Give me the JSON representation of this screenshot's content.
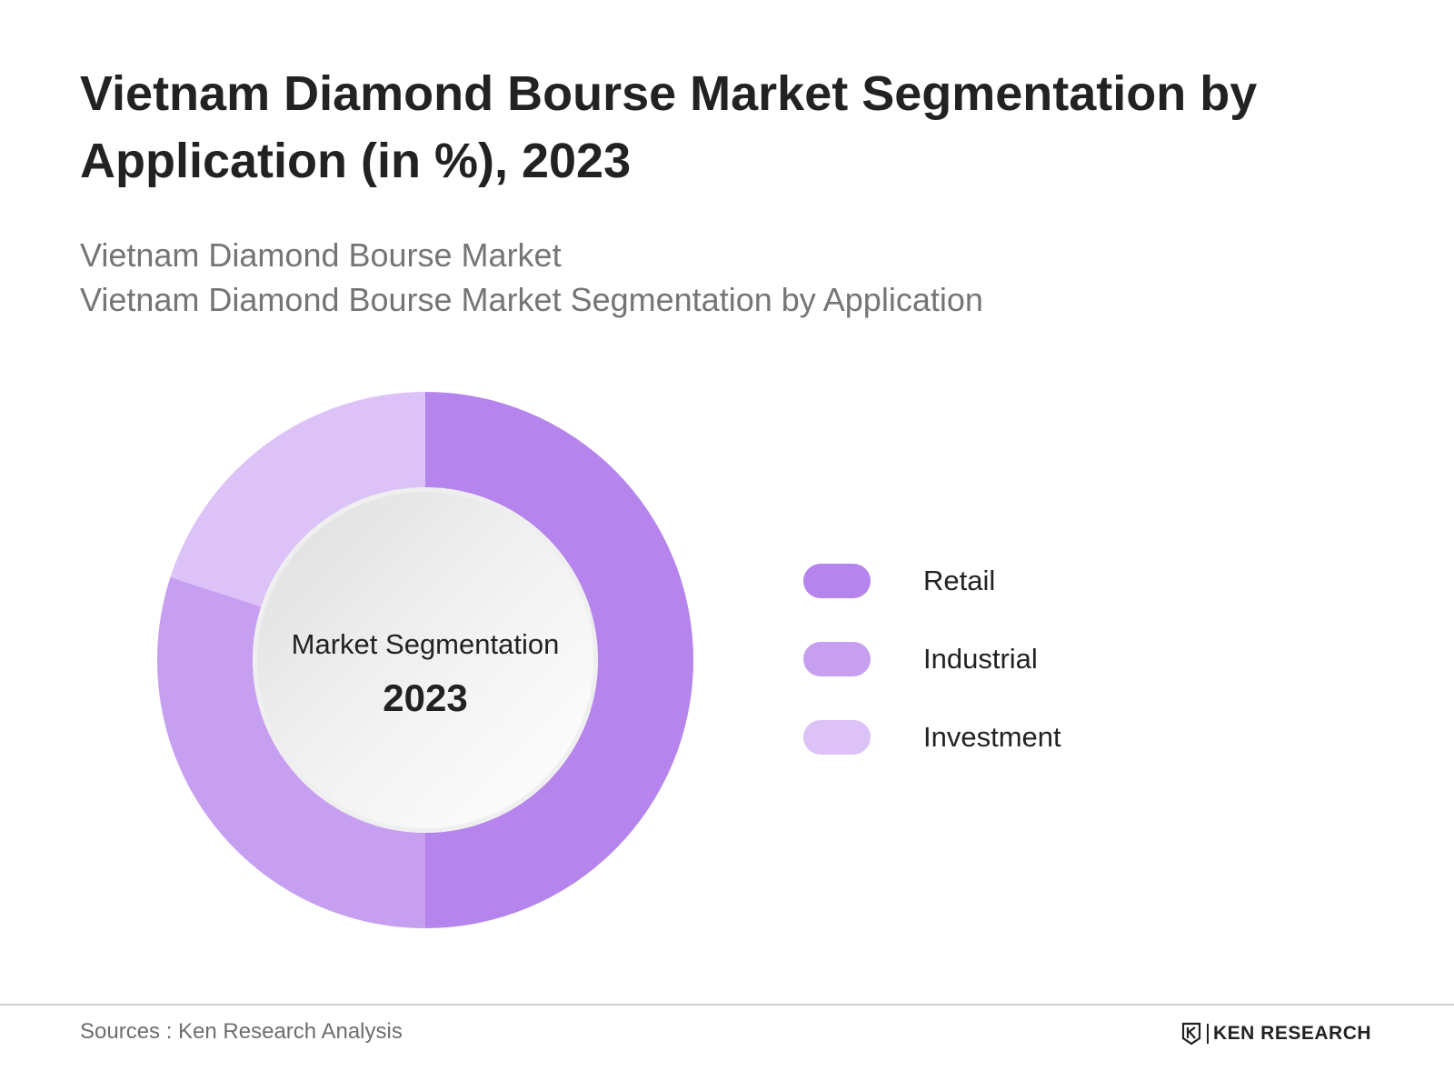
{
  "title": "Vietnam Diamond Bourse Market Segmentation by Application (in %), 2023",
  "subtitle_lines": [
    "Vietnam Diamond Bourse Market",
    "Vietnam Diamond Bourse Market Segmentation by Application"
  ],
  "center_label": {
    "line1": "Market Segmentation",
    "line2": "2023"
  },
  "chart_data": {
    "type": "pie",
    "style": "donut",
    "categories": [
      "Retail",
      "Industrial",
      "Investment"
    ],
    "values": [
      50,
      30,
      20
    ],
    "colors": [
      "#b584ec",
      "#c79ff0",
      "#dcc2f7"
    ],
    "legend": "right",
    "title": "Vietnam Diamond Bourse Market Segmentation by Application (in %), 2023"
  },
  "footer": {
    "sources": "Sources : Ken Research Analysis",
    "brand": "KEN RESEARCH",
    "brand_icon": "ken-research-logo-icon"
  }
}
